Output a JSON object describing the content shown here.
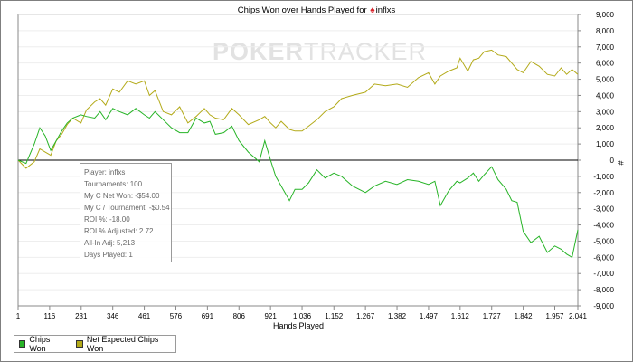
{
  "title": {
    "prefix": "Chips Won over Hands Played for",
    "player": "inflxs"
  },
  "watermark": {
    "part1": "POKER",
    "part2": "TRACKER"
  },
  "colors": {
    "chips_won": "#27b427",
    "net_expected": "#b3aa19",
    "zero_line": "#000000",
    "grid": "#eeeeee"
  },
  "tooltip": [
    {
      "label": "Player",
      "value": "inflxs"
    },
    {
      "label": "Tournaments",
      "value": "100"
    },
    {
      "label": "My C Net Won",
      "value": "-$54.00"
    },
    {
      "label": "My C / Tournament",
      "value": "-$0.54"
    },
    {
      "label": "ROI %",
      "value": "-18.00"
    },
    {
      "label": "ROI % Adjusted",
      "value": "2.72"
    },
    {
      "label": "All-In Adj",
      "value": "5,213"
    },
    {
      "label": "Days Played",
      "value": "1"
    }
  ],
  "legend": [
    {
      "name": "Chips Won",
      "color": "#27b427"
    },
    {
      "name": "Net Expected Chips Won",
      "color": "#b3aa19"
    }
  ],
  "chart_data": {
    "type": "line",
    "title": "Chips Won over Hands Played for inflxs",
    "xlabel": "Hands Played",
    "ylabel": "#",
    "xlim": [
      1,
      2041
    ],
    "ylim": [
      -9000,
      9000
    ],
    "x_ticks": [
      "1",
      "116",
      "231",
      "346",
      "461",
      "576",
      "691",
      "806",
      "921",
      "1,036",
      "1,152",
      "1,267",
      "1,382",
      "1,497",
      "1,612",
      "1,727",
      "1,842",
      "1,957",
      "2,041"
    ],
    "y_ticks": [
      "9,000",
      "8,000",
      "7,000",
      "6,000",
      "5,000",
      "4,000",
      "3,000",
      "2,000",
      "1,000",
      "0",
      "-1,000",
      "-2,000",
      "-3,000",
      "-4,000",
      "-5,000",
      "-6,000",
      "-7,000",
      "-8,000",
      "-9,000"
    ],
    "grid": true,
    "legend_position": "bottom-left",
    "series": [
      {
        "name": "Chips Won",
        "x": [
          1,
          30,
          60,
          80,
          100,
          120,
          140,
          160,
          180,
          200,
          230,
          250,
          280,
          300,
          320,
          346,
          370,
          400,
          430,
          461,
          480,
          500,
          530,
          560,
          590,
          620,
          650,
          680,
          700,
          720,
          750,
          780,
          806,
          840,
          880,
          900,
          921,
          940,
          960,
          990,
          1010,
          1036,
          1060,
          1090,
          1120,
          1152,
          1180,
          1220,
          1267,
          1300,
          1340,
          1382,
          1420,
          1460,
          1497,
          1520,
          1540,
          1570,
          1600,
          1612,
          1640,
          1660,
          1680,
          1700,
          1727,
          1750,
          1780,
          1800,
          1820,
          1842,
          1870,
          1900,
          1930,
          1957,
          1980,
          2000,
          2020,
          2041
        ],
        "y": [
          0,
          -200,
          1000,
          2000,
          1500,
          600,
          1200,
          1800,
          2300,
          2600,
          2800,
          2700,
          2600,
          3000,
          2500,
          3200,
          3000,
          2800,
          3200,
          2800,
          2600,
          3000,
          2500,
          2000,
          1700,
          1700,
          2600,
          2300,
          2400,
          1600,
          1700,
          2100,
          1200,
          500,
          -100,
          1200,
          0,
          -1000,
          -1600,
          -2500,
          -1800,
          -1800,
          -1400,
          -600,
          -1100,
          -800,
          -1000,
          -1600,
          -2000,
          -1600,
          -1300,
          -1500,
          -1200,
          -1300,
          -1500,
          -1300,
          -2800,
          -1900,
          -1300,
          -1400,
          -1100,
          -800,
          -1300,
          -900,
          -400,
          -1200,
          -1800,
          -2500,
          -2600,
          -4400,
          -5100,
          -4700,
          -5700,
          -5300,
          -5500,
          -5800,
          -6000,
          -4300
        ]
      },
      {
        "name": "Net Expected Chips Won",
        "x": [
          1,
          30,
          60,
          80,
          100,
          120,
          140,
          160,
          180,
          200,
          230,
          250,
          280,
          300,
          320,
          346,
          370,
          400,
          430,
          461,
          480,
          500,
          530,
          560,
          590,
          620,
          650,
          680,
          700,
          720,
          750,
          780,
          806,
          840,
          880,
          900,
          921,
          940,
          960,
          990,
          1010,
          1036,
          1060,
          1090,
          1120,
          1152,
          1180,
          1220,
          1267,
          1300,
          1340,
          1382,
          1420,
          1460,
          1497,
          1520,
          1540,
          1570,
          1600,
          1612,
          1640,
          1660,
          1680,
          1700,
          1727,
          1750,
          1780,
          1800,
          1820,
          1842,
          1870,
          1900,
          1930,
          1957,
          1980,
          2000,
          2020,
          2041
        ],
        "y": [
          0,
          -500,
          -100,
          700,
          500,
          300,
          1200,
          1600,
          2200,
          2600,
          2300,
          3100,
          3600,
          3800,
          3400,
          4400,
          4200,
          4900,
          4700,
          4900,
          4000,
          4300,
          3000,
          2800,
          3300,
          2300,
          2700,
          3200,
          2800,
          2600,
          2500,
          3200,
          2800,
          2200,
          2500,
          2700,
          2300,
          2000,
          2400,
          1900,
          1800,
          1800,
          2100,
          2500,
          3000,
          3300,
          3800,
          4000,
          4200,
          4700,
          4600,
          4700,
          4500,
          5100,
          5400,
          4700,
          5200,
          5500,
          5700,
          6300,
          5500,
          6200,
          6300,
          6700,
          6800,
          6500,
          6400,
          6000,
          5600,
          5400,
          6100,
          5800,
          5300,
          5200,
          5700,
          5300,
          5600,
          5300
        ]
      }
    ]
  }
}
